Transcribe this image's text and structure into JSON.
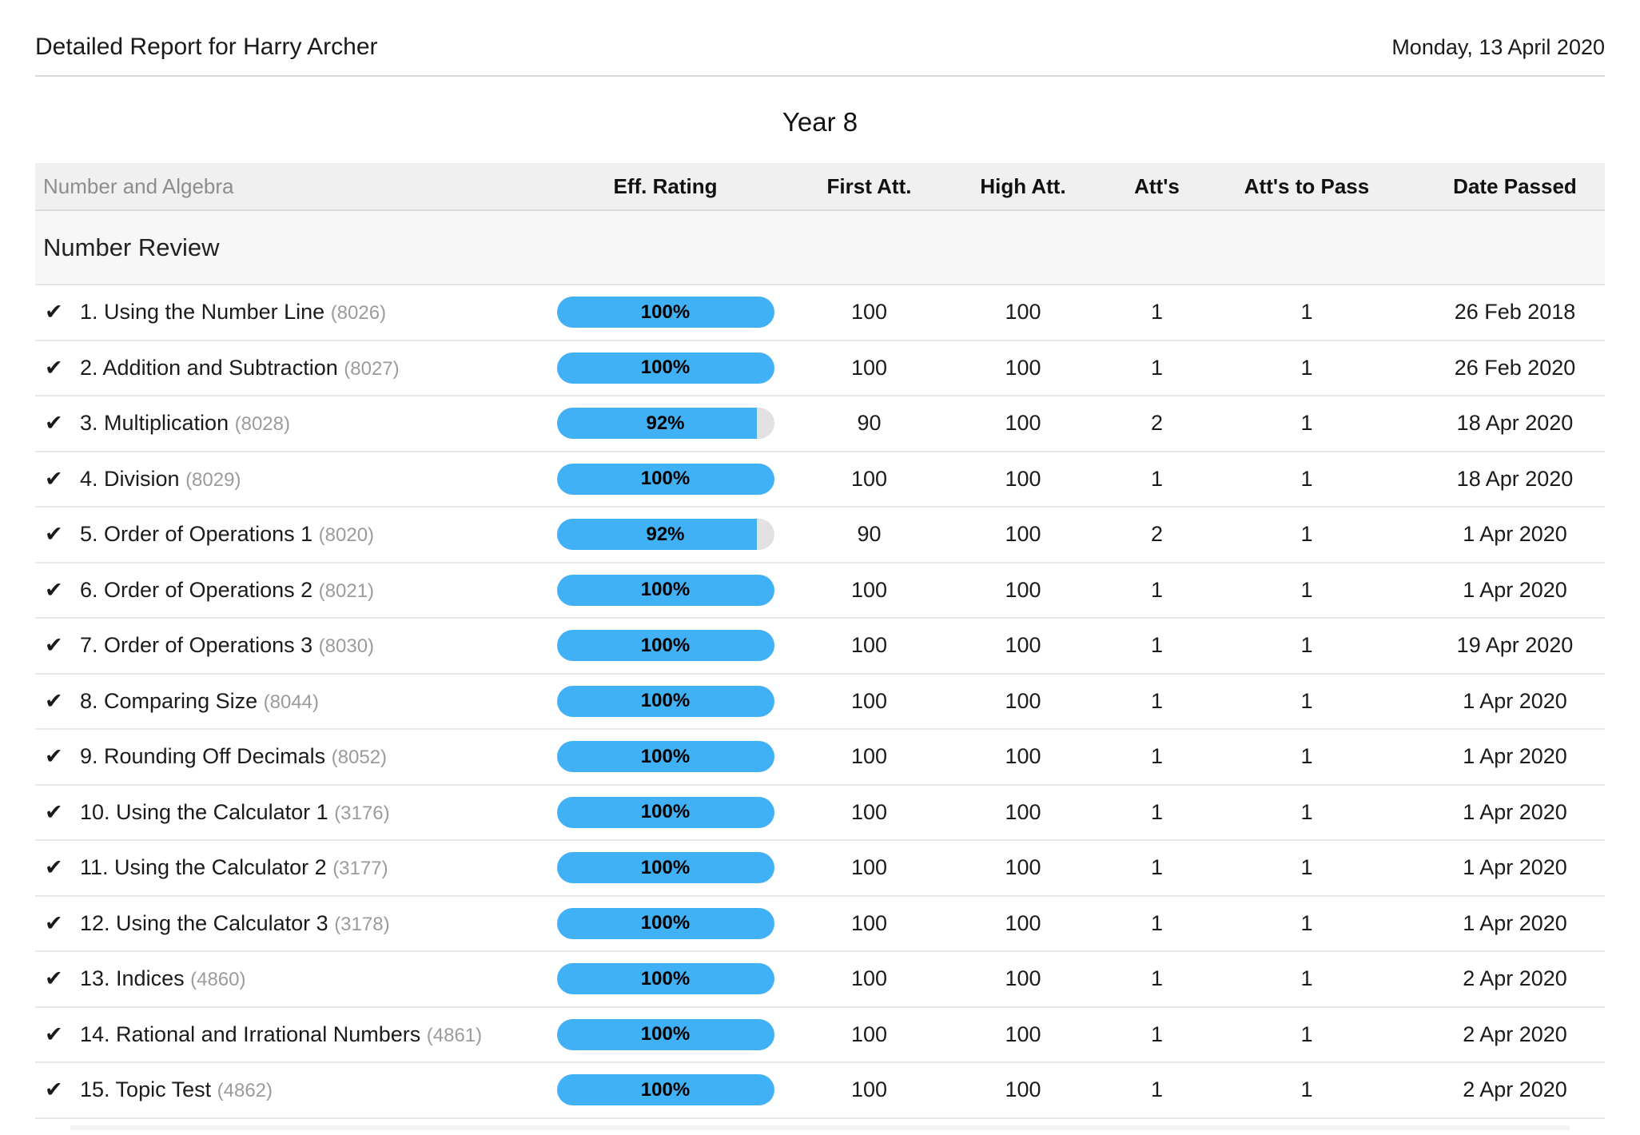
{
  "header": {
    "title": "Detailed Report for Harry Archer",
    "date": "Monday, 13 April 2020"
  },
  "year_title": "Year 8",
  "icons": {
    "passed_check": "✔"
  },
  "colors": {
    "bar_fill": "#41b1f6",
    "bar_track": "#e1e1e1",
    "header_bg": "#f0f0f0",
    "section_bg": "#f7f7f7"
  },
  "table": {
    "columns": [
      "Number and Algebra",
      "Eff. Rating",
      "First Att.",
      "High Att.",
      "Att's",
      "Att's to Pass",
      "Date Passed"
    ],
    "section": "Number Review",
    "rows": [
      {
        "passed": true,
        "title": "1. Using the Number Line",
        "id": "(8026)",
        "eff_rating": "100%",
        "eff_value": 100,
        "first_att": "100",
        "high_att": "100",
        "atts": "1",
        "atts_to_pass": "1",
        "date_passed": "26 Feb 2018"
      },
      {
        "passed": true,
        "title": "2. Addition and Subtraction",
        "id": "(8027)",
        "eff_rating": "100%",
        "eff_value": 100,
        "first_att": "100",
        "high_att": "100",
        "atts": "1",
        "atts_to_pass": "1",
        "date_passed": "26 Feb 2020"
      },
      {
        "passed": true,
        "title": "3. Multiplication",
        "id": "(8028)",
        "eff_rating": "92%",
        "eff_value": 92,
        "first_att": "90",
        "high_att": "100",
        "atts": "2",
        "atts_to_pass": "1",
        "date_passed": "18 Apr 2020"
      },
      {
        "passed": true,
        "title": "4. Division",
        "id": "(8029)",
        "eff_rating": "100%",
        "eff_value": 100,
        "first_att": "100",
        "high_att": "100",
        "atts": "1",
        "atts_to_pass": "1",
        "date_passed": "18 Apr 2020"
      },
      {
        "passed": true,
        "title": "5. Order of Operations 1",
        "id": "(8020)",
        "eff_rating": "92%",
        "eff_value": 92,
        "first_att": "90",
        "high_att": "100",
        "atts": "2",
        "atts_to_pass": "1",
        "date_passed": "1 Apr 2020"
      },
      {
        "passed": true,
        "title": "6. Order of Operations 2",
        "id": "(8021)",
        "eff_rating": "100%",
        "eff_value": 100,
        "first_att": "100",
        "high_att": "100",
        "atts": "1",
        "atts_to_pass": "1",
        "date_passed": "1 Apr 2020"
      },
      {
        "passed": true,
        "title": "7. Order of Operations 3",
        "id": "(8030)",
        "eff_rating": "100%",
        "eff_value": 100,
        "first_att": "100",
        "high_att": "100",
        "atts": "1",
        "atts_to_pass": "1",
        "date_passed": "19 Apr 2020"
      },
      {
        "passed": true,
        "title": "8. Comparing Size",
        "id": "(8044)",
        "eff_rating": "100%",
        "eff_value": 100,
        "first_att": "100",
        "high_att": "100",
        "atts": "1",
        "atts_to_pass": "1",
        "date_passed": "1 Apr 2020"
      },
      {
        "passed": true,
        "title": "9. Rounding Off Decimals",
        "id": "(8052)",
        "eff_rating": "100%",
        "eff_value": 100,
        "first_att": "100",
        "high_att": "100",
        "atts": "1",
        "atts_to_pass": "1",
        "date_passed": "1 Apr 2020"
      },
      {
        "passed": true,
        "title": "10. Using the Calculator 1",
        "id": "(3176)",
        "eff_rating": "100%",
        "eff_value": 100,
        "first_att": "100",
        "high_att": "100",
        "atts": "1",
        "atts_to_pass": "1",
        "date_passed": "1 Apr 2020"
      },
      {
        "passed": true,
        "title": "11. Using the Calculator 2",
        "id": "(3177)",
        "eff_rating": "100%",
        "eff_value": 100,
        "first_att": "100",
        "high_att": "100",
        "atts": "1",
        "atts_to_pass": "1",
        "date_passed": "1 Apr 2020"
      },
      {
        "passed": true,
        "title": "12. Using the Calculator 3",
        "id": "(3178)",
        "eff_rating": "100%",
        "eff_value": 100,
        "first_att": "100",
        "high_att": "100",
        "atts": "1",
        "atts_to_pass": "1",
        "date_passed": "1 Apr 2020"
      },
      {
        "passed": true,
        "title": "13. Indices",
        "id": "(4860)",
        "eff_rating": "100%",
        "eff_value": 100,
        "first_att": "100",
        "high_att": "100",
        "atts": "1",
        "atts_to_pass": "1",
        "date_passed": "2 Apr 2020"
      },
      {
        "passed": true,
        "title": "14. Rational and Irrational Numbers",
        "id": "(4861)",
        "eff_rating": "100%",
        "eff_value": 100,
        "first_att": "100",
        "high_att": "100",
        "atts": "1",
        "atts_to_pass": "1",
        "date_passed": "2 Apr 2020"
      },
      {
        "passed": true,
        "title": "15. Topic Test",
        "id": "(4862)",
        "eff_rating": "100%",
        "eff_value": 100,
        "first_att": "100",
        "high_att": "100",
        "atts": "1",
        "atts_to_pass": "1",
        "date_passed": "2 Apr 2020"
      }
    ]
  }
}
